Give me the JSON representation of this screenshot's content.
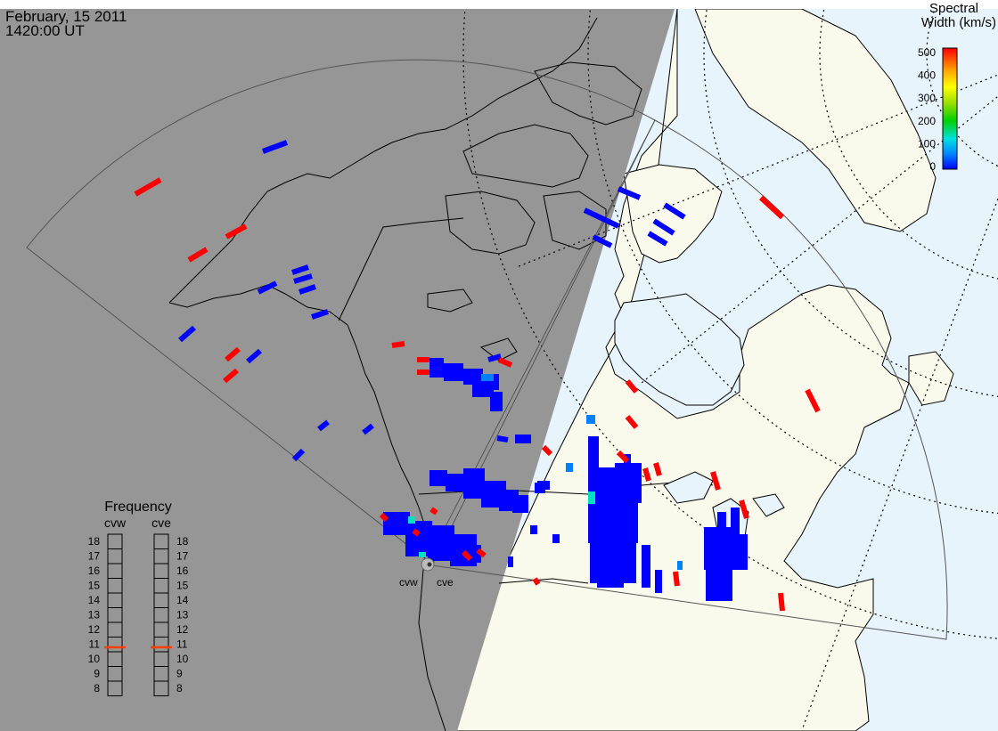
{
  "header": {
    "date": "February, 15 2011",
    "time": "1420:00 UT"
  },
  "colorbar": {
    "title_line1": "Spectral",
    "title_line2": "Width (km/s)",
    "ticks": [
      "500",
      "400",
      "300",
      "200",
      "100",
      "0"
    ],
    "scale": [
      0,
      500
    ],
    "colors": [
      "#0000ff",
      "#0080ff",
      "#00e0e0",
      "#00d000",
      "#a0e000",
      "#ffff00",
      "#ffa000",
      "#ff0000"
    ]
  },
  "frequency": {
    "title": "Frequency",
    "radar_left": "cvw",
    "radar_right": "cve",
    "labels": [
      "18",
      "17",
      "16",
      "15",
      "14",
      "13",
      "12",
      "11",
      "10",
      "9",
      "8"
    ],
    "cvw_value": 10.8,
    "cve_value": 10.8,
    "marker_color": "#ff4000"
  },
  "radars": {
    "left": "cvw",
    "right": "cve"
  },
  "colors": {
    "night": "#969696",
    "day_land": "#fafaec",
    "day_ocean": "#e8f4fc",
    "low_width": "#0000ff",
    "high_width": "#ff0000"
  }
}
